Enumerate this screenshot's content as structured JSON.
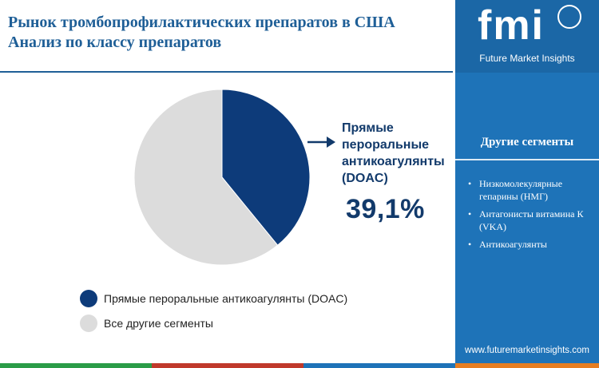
{
  "header": {
    "title_line1": "Рынок тромбопрофилактических препаратов в США",
    "title_line2": "Анализ по классу препаратов"
  },
  "callout": {
    "label_line1": "Прямые",
    "label_line2": "пероральные",
    "label_line3": "антикоагулянты",
    "label_line4": "(DOAC)",
    "value": "39,1%"
  },
  "legend": {
    "items": [
      {
        "label": "Прямые пероральные антикоагулянты (DOAC)",
        "color": "#0d3b7a"
      },
      {
        "label": "Все другие сегменты",
        "color": "#dcdcdc"
      }
    ]
  },
  "sidebar": {
    "logo_text": "fmi",
    "logo_subtitle": "Future Market Insights",
    "segments_heading": "Другие сегменты",
    "segments": [
      "Низкомолекулярные гепарины (НМГ)",
      "Антагонисты витамина К (VKA)",
      "Антикоагулянты"
    ],
    "website": "www.futuremarketinsights.com"
  },
  "colors": {
    "title": "#1f5f97",
    "sidebar_bg": "#1e73b8",
    "bottom_bar": [
      "#2a9c47",
      "#c0392b",
      "#1e73b8",
      "#e67e22"
    ]
  },
  "chart_data": {
    "type": "pie",
    "categories": [
      "Прямые пероральные антикоагулянты (DOAC)",
      "Все другие сегменты"
    ],
    "values": [
      39.1,
      60.9
    ],
    "colors": [
      "#0d3b7a",
      "#dcdcdc"
    ],
    "title": "",
    "legend": "bottom-left"
  }
}
